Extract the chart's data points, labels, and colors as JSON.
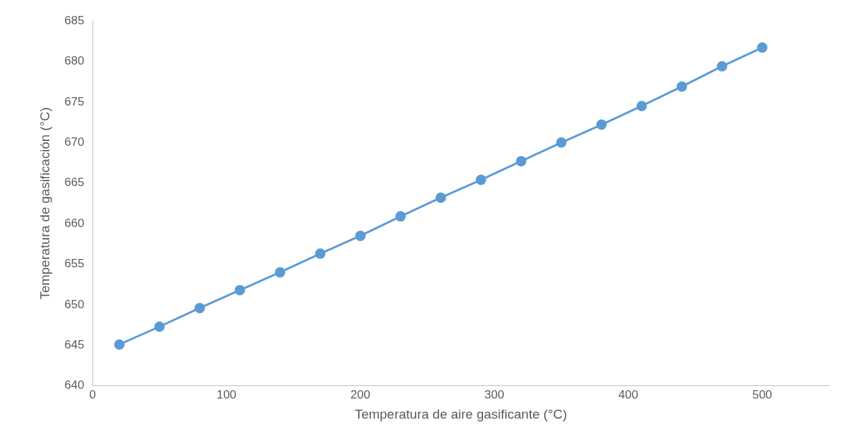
{
  "chart_data": {
    "type": "line",
    "xlabel": "Temperatura de aire gasificante (°C)",
    "ylabel": "Temperatura de gasificación (°C)",
    "x": [
      20,
      50,
      80,
      110,
      140,
      170,
      200,
      230,
      260,
      290,
      320,
      350,
      380,
      410,
      440,
      470,
      500
    ],
    "series": [
      {
        "color": "#5b9bd5",
        "values": [
          645.1,
          647.3,
          649.6,
          651.8,
          654.0,
          656.3,
          658.5,
          660.9,
          663.2,
          665.4,
          667.7,
          670.0,
          672.2,
          674.5,
          676.9,
          679.4,
          681.7
        ]
      }
    ],
    "xlim": [
      0,
      550
    ],
    "xticks": [
      0,
      100,
      200,
      300,
      400,
      500
    ],
    "ylim": [
      640,
      685
    ],
    "yticks": [
      640,
      645,
      650,
      655,
      660,
      665,
      670,
      675,
      680,
      685
    ],
    "grid": false,
    "legend": false,
    "marker": "circle",
    "line_style": "solid"
  }
}
